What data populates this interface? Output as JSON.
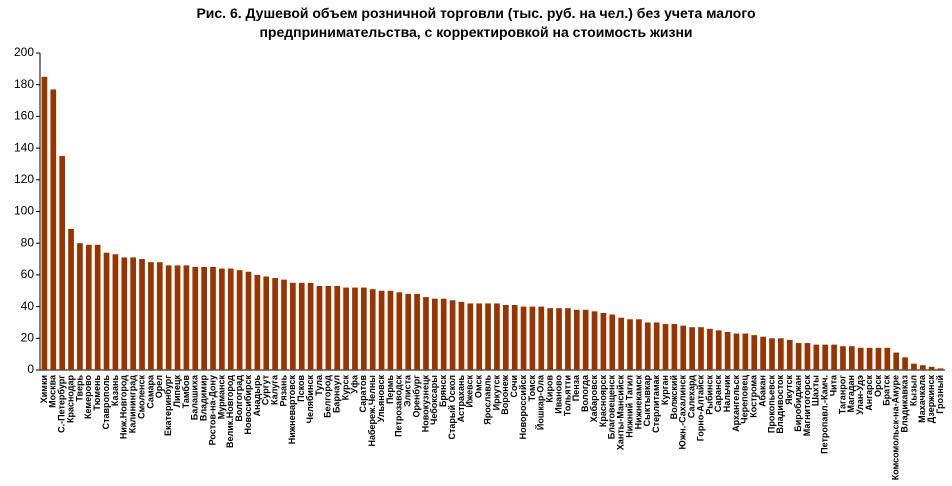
{
  "chart_data": {
    "type": "bar",
    "title": "Рис. 6. Душевой объем розничной торговли (тыс. руб. на чел.) без учета малого предпринимательства, с корректировкой на стоимость жизни",
    "categories": [
      "Химки",
      "Москва",
      "С.-Петербург",
      "Краснодар",
      "Тверь",
      "Кемерово",
      "Тюмень",
      "Ставрополь",
      "Казань",
      "Ниж.Новгород",
      "Калининград",
      "Смоленск",
      "Самара",
      "Орел",
      "Екатеринбург",
      "Липецк",
      "Тамбов",
      "Балашиха",
      "Владимир",
      "Ростов-на-Дону",
      "Мурманск",
      "Велик.Новгород",
      "Волгоград",
      "Новосибирск",
      "Анадырь",
      "Сургут",
      "Калуга",
      "Рязань",
      "Нижневартовск",
      "Псков",
      "Челябинск",
      "Тула",
      "Белгород",
      "Барнаул",
      "Курск",
      "Уфа",
      "Саратов",
      "Набереж.Челны",
      "Ульяновск",
      "Пермь",
      "Петрозаводск",
      "Элиста",
      "Оренбург",
      "Новокузнецк",
      "Чебоксары",
      "Брянск",
      "Старый Оскол",
      "Астрахань",
      "Ижевск",
      "Омск",
      "Ярославль",
      "Иркутск",
      "Воронеж",
      "Сочи",
      "Новороссийск",
      "Томск",
      "Йошкар-Ола",
      "Киров",
      "Иваново",
      "Тольятти",
      "Пенза",
      "Вологда",
      "Хабаровск",
      "Красноярск",
      "Благовещенск",
      "Ханты-Мансийск",
      "Нижний Тагил",
      "Нижнекамск",
      "Сыктывкар",
      "Стерлитамак",
      "Курган",
      "Волжский",
      "Южн.-Сахалинск",
      "Салехард",
      "Горно-Алтайск",
      "Рыбинск",
      "Саранск",
      "Нальчик",
      "Архангельск",
      "Череповец",
      "Кострома",
      "Абакан",
      "Прокопьевск",
      "Владивосток",
      "Якутск",
      "Биробиджан",
      "Магнитогорск",
      "Шахты",
      "Петропавл.-Камч.",
      "Чита",
      "Таганрог",
      "Магадан",
      "Улан-Удэ",
      "Ангарск",
      "Орск",
      "Братск",
      "Комсомольск-на-Амуре",
      "Владикавказ",
      "Кызыл",
      "Махачкала",
      "Дзержинск",
      "Грозный"
    ],
    "values": [
      185,
      177,
      135,
      89,
      80,
      79,
      79,
      74,
      73,
      71,
      71,
      70,
      68,
      68,
      66,
      66,
      66,
      65,
      65,
      65,
      64,
      64,
      63,
      62,
      60,
      59,
      58,
      57,
      55,
      55,
      55,
      53,
      53,
      53,
      52,
      52,
      52,
      51,
      50,
      50,
      49,
      48,
      48,
      46,
      45,
      45,
      44,
      43,
      42,
      42,
      42,
      42,
      41,
      41,
      40,
      40,
      40,
      39,
      39,
      39,
      38,
      38,
      37,
      36,
      35,
      33,
      32,
      32,
      30,
      30,
      29,
      29,
      28,
      27,
      27,
      26,
      25,
      24,
      23,
      23,
      22,
      21,
      20,
      20,
      19,
      17,
      17,
      16,
      16,
      16,
      15,
      15,
      14,
      14,
      14,
      14,
      11,
      8,
      4,
      3,
      2,
      1
    ],
    "color": "#993300",
    "ylim": [
      0,
      200
    ],
    "yticks": [
      0,
      20,
      40,
      60,
      80,
      100,
      120,
      140,
      160,
      180,
      200
    ],
    "grid": false
  }
}
